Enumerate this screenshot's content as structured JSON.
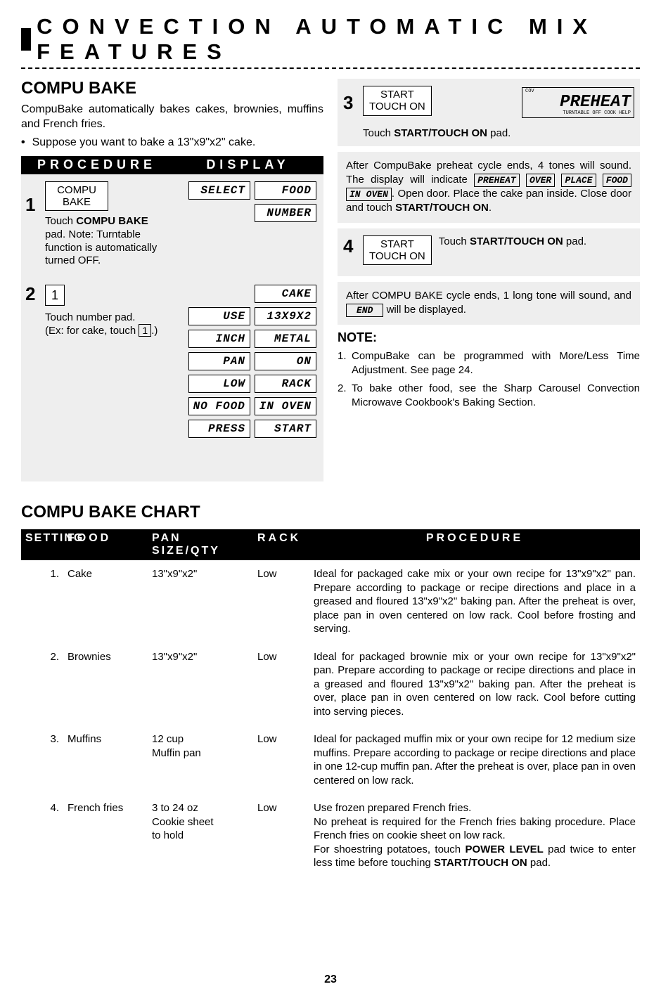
{
  "header": "CONVECTION AUTOMATIC MIX FEATURES",
  "title": "COMPU BAKE",
  "intro": "CompuBake automatically bakes cakes, brownies, muffins and French fries.",
  "bullet": "Suppose you want to bake a 13\"x9\"x2\" cake.",
  "procDisplay": {
    "h1": "PROCEDURE",
    "h2": "DISPLAY"
  },
  "step1": {
    "num": "1",
    "key": "COMPU\nBAKE",
    "text": "Touch COMPU BAKE pad. Note: Turntable function is automatically turned OFF.",
    "disp": {
      "r1a": "SELECT",
      "r1b": "FOOD",
      "r2": "NUMBER"
    }
  },
  "step2": {
    "num": "2",
    "key": "1",
    "text1": "Touch number pad.",
    "text2a": "(Ex: for cake, touch ",
    "text2key": "1",
    "text2b": ".)",
    "disp": [
      [
        "CAKE"
      ],
      [
        "USE",
        "13X9X2"
      ],
      [
        "INCH",
        "METAL"
      ],
      [
        "PAN",
        "ON"
      ],
      [
        "LOW",
        "RACK"
      ],
      [
        "NO FOOD",
        "IN OVEN"
      ],
      [
        "PRESS",
        "START"
      ]
    ]
  },
  "step3": {
    "num": "3",
    "key": "START\nTOUCH ON",
    "dispBig": "PREHEAT",
    "dispTinyL": "COV",
    "dispTinyRow": "TURNTABLE   OFF  COOK                      HELP",
    "text": "Touch START/TOUCH ON pad."
  },
  "grayNote1a": "After CompuBake preheat cycle ends, 4 tones will sound. The display will indicate ",
  "grayNote1_d1": "PREHEAT",
  "grayNote1_d2": "OVER",
  "grayNote1_d3": "PLACE",
  "grayNote1_d4": "FOOD",
  "grayNote1_d5": "IN OVEN",
  "grayNote1b": ". Open door. Place the cake pan inside. Close door and touch START/TOUCH ON.",
  "step4": {
    "num": "4",
    "key": "START\nTOUCH ON",
    "text": "Touch START/TOUCH ON pad."
  },
  "grayNote2a": "After COMPU BAKE cycle ends, 1 long tone will sound, and ",
  "grayNote2_d": "END",
  "grayNote2b": " will be displayed.",
  "noteHead": "NOTE:",
  "notes": [
    {
      "n": "1.",
      "t": "CompuBake can be programmed with More/Less Time Adjustment. See page 24."
    },
    {
      "n": "2.",
      "t": "To bake other food, see the Sharp Carousel Convection Microwave Cookbook's Baking Section."
    }
  ],
  "chartTitle": "COMPU BAKE CHART",
  "chartHeader": {
    "setting": "SETTING",
    "food": "FOOD",
    "pan": "PAN SIZE/QTY",
    "rack": "RACK",
    "proc": "PROCEDURE"
  },
  "chartRows": [
    {
      "setting": "1.",
      "food": "Cake",
      "pan": "13\"x9\"x2\"",
      "rack": "Low",
      "proc": "Ideal for packaged cake mix or your own recipe for 13\"x9\"x2\" pan. Prepare according to package or recipe directions and place in a greased and floured 13\"x9\"x2\" baking pan. After the preheat is over, place pan in oven centered on low rack. Cool before frosting and serving."
    },
    {
      "setting": "2.",
      "food": "Brownies",
      "pan": "13\"x9\"x2\"",
      "rack": "Low",
      "proc": "Ideal for packaged brownie mix or your own recipe for 13\"x9\"x2\" pan. Prepare according to package or recipe directions and place in a greased and floured 13\"x9\"x2\" baking pan. After the preheat is over, place pan in oven centered on low rack. Cool before cutting into serving pieces."
    },
    {
      "setting": "3.",
      "food": "Muffins",
      "pan": "12 cup\nMuffin pan",
      "rack": "Low",
      "proc": "Ideal for packaged muffin mix or your own recipe for 12 medium size muffins. Prepare according to package or recipe directions and place in one 12-cup muffin pan. After the preheat is over, place pan in oven centered on low rack."
    },
    {
      "setting": "4.",
      "food": "French fries",
      "pan": "3 to 24 oz\nCookie sheet\nto hold",
      "rack": "Low",
      "proc": "Use frozen prepared French fries.\nNo preheat is required for the French fries baking procedure. Place French fries on cookie sheet on low rack.\nFor shoestring potatoes, touch POWER LEVEL pad twice to enter less time before touching START/TOUCH ON pad."
    }
  ],
  "pageNum": "23"
}
